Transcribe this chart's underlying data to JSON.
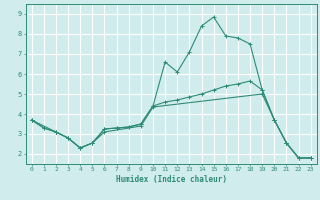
{
  "xlabel": "Humidex (Indice chaleur)",
  "xlim": [
    -0.5,
    23.5
  ],
  "ylim": [
    1.5,
    9.5
  ],
  "xticks": [
    0,
    1,
    2,
    3,
    4,
    5,
    6,
    7,
    8,
    9,
    10,
    11,
    12,
    13,
    14,
    15,
    16,
    17,
    18,
    19,
    20,
    21,
    22,
    23
  ],
  "yticks": [
    2,
    3,
    4,
    5,
    6,
    7,
    8,
    9
  ],
  "line_color": "#2E8B77",
  "bg_color": "#D0ECEC",
  "grid_color": "#FFFFFF",
  "line1_x": [
    0,
    1,
    2,
    3,
    4,
    5,
    6,
    7,
    8,
    9,
    10,
    11,
    12,
    13,
    14,
    15,
    16,
    17,
    18,
    19,
    20,
    21,
    22,
    23
  ],
  "line1_y": [
    3.7,
    3.3,
    3.1,
    2.8,
    2.3,
    2.55,
    3.25,
    3.3,
    3.35,
    3.5,
    4.4,
    6.6,
    6.1,
    7.1,
    8.4,
    8.85,
    7.9,
    7.8,
    7.5,
    5.2,
    3.7,
    2.55,
    1.8,
    1.8
  ],
  "line2_x": [
    0,
    1,
    2,
    3,
    4,
    5,
    6,
    7,
    8,
    9,
    10,
    11,
    12,
    13,
    14,
    15,
    16,
    17,
    18,
    19,
    20,
    21,
    22,
    23
  ],
  "line2_y": [
    3.7,
    3.3,
    3.1,
    2.8,
    2.3,
    2.55,
    3.25,
    3.3,
    3.35,
    3.5,
    4.4,
    4.6,
    4.7,
    4.85,
    5.0,
    5.2,
    5.4,
    5.5,
    5.65,
    5.2,
    3.7,
    2.55,
    1.8,
    1.8
  ],
  "line3_x": [
    0,
    2,
    3,
    4,
    5,
    6,
    9,
    10,
    19,
    20,
    21,
    22,
    23
  ],
  "line3_y": [
    3.7,
    3.1,
    2.8,
    2.3,
    2.55,
    3.1,
    3.4,
    4.35,
    5.0,
    3.7,
    2.55,
    1.8,
    1.8
  ]
}
